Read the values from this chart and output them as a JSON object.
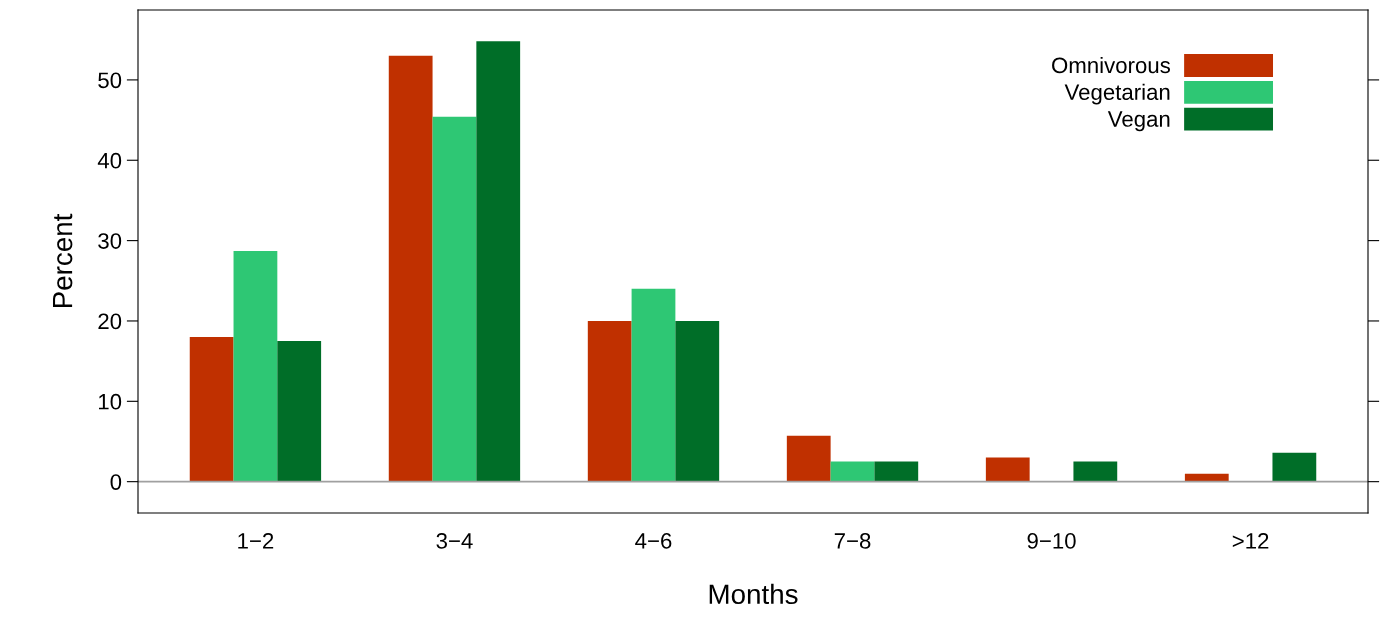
{
  "chart_data": {
    "type": "bar",
    "xlabel": "Months",
    "ylabel": "Percent",
    "categories": [
      "1−2",
      "3−4",
      "4−6",
      "7−8",
      "9−10",
      ">12"
    ],
    "series": [
      {
        "name": "Omnivorous",
        "color": "#c03000",
        "values": [
          18,
          53,
          20,
          5.7,
          3,
          1
        ]
      },
      {
        "name": "Vegetarian",
        "color": "#2ec774",
        "values": [
          28.7,
          45.4,
          24,
          2.5,
          0,
          0
        ]
      },
      {
        "name": "Vegan",
        "color": "#006e28",
        "values": [
          17.5,
          54.8,
          20,
          2.5,
          2.5,
          3.6
        ]
      }
    ],
    "ylim": [
      -3.9,
      58.7
    ],
    "yticks": [
      0,
      10,
      20,
      30,
      40,
      50
    ],
    "ref_lines": [
      {
        "axis": "y",
        "value": 0,
        "color": "#a0a0a0"
      }
    ],
    "grid": false,
    "legend": "top right"
  }
}
